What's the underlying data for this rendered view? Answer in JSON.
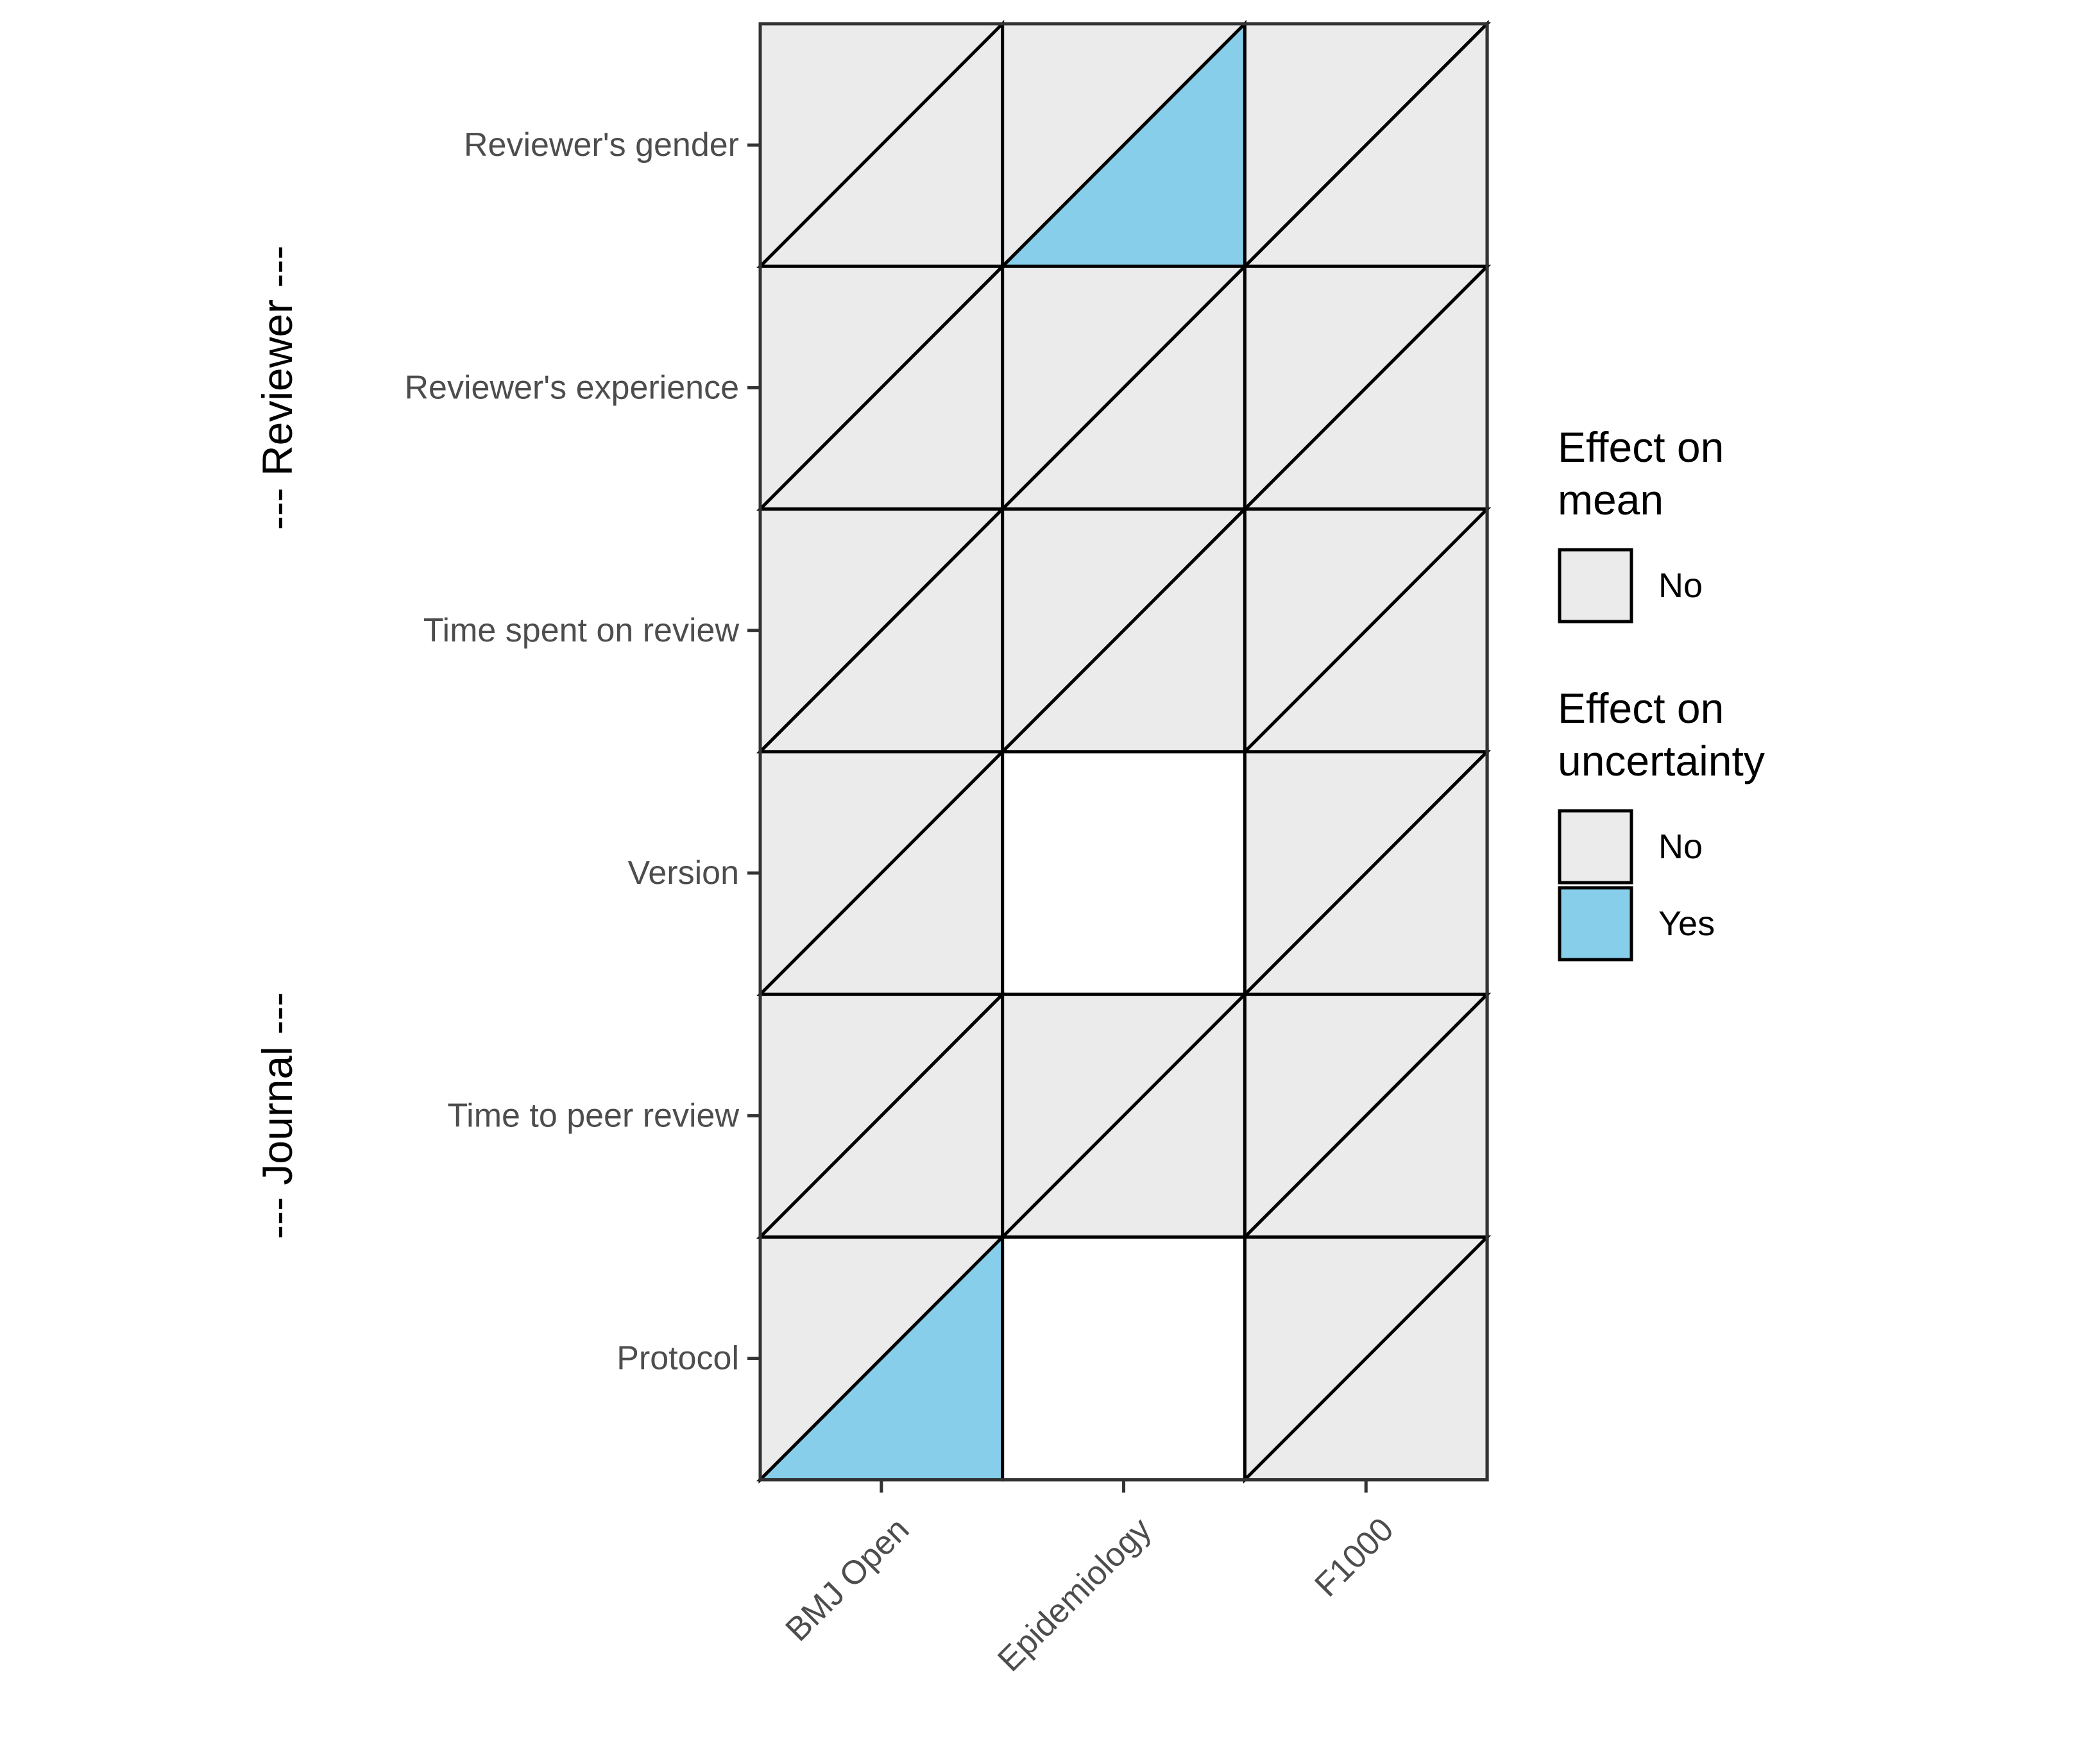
{
  "chart_data": {
    "type": "heatmap",
    "title": "",
    "xlabel": "",
    "ylabel": "",
    "x_categories": [
      "BMJ Open",
      "Epidemiology",
      "F1000"
    ],
    "y_categories": [
      "Reviewer's gender",
      "Reviewer's experience",
      "Time spent on review",
      "Version",
      "Time to peer review",
      "Protocol"
    ],
    "row_groups": [
      {
        "label": "--- Reviewer ---",
        "rows": [
          "Reviewer's gender",
          "Reviewer's experience",
          "Time spent on review"
        ]
      },
      {
        "label": "--- Journal ---",
        "rows": [
          "Version",
          "Time to peer review",
          "Protocol"
        ]
      }
    ],
    "cells": [
      {
        "row": "Reviewer's gender",
        "col": "BMJ Open",
        "mean": "No",
        "uncertainty": "No"
      },
      {
        "row": "Reviewer's gender",
        "col": "Epidemiology",
        "mean": "No",
        "uncertainty": "Yes"
      },
      {
        "row": "Reviewer's gender",
        "col": "F1000",
        "mean": "No",
        "uncertainty": "No"
      },
      {
        "row": "Reviewer's experience",
        "col": "BMJ Open",
        "mean": "No",
        "uncertainty": "No"
      },
      {
        "row": "Reviewer's experience",
        "col": "Epidemiology",
        "mean": "No",
        "uncertainty": "No"
      },
      {
        "row": "Reviewer's experience",
        "col": "F1000",
        "mean": "No",
        "uncertainty": "No"
      },
      {
        "row": "Time spent on review",
        "col": "BMJ Open",
        "mean": "No",
        "uncertainty": "No"
      },
      {
        "row": "Time spent on review",
        "col": "Epidemiology",
        "mean": "No",
        "uncertainty": "No"
      },
      {
        "row": "Time spent on review",
        "col": "F1000",
        "mean": "No",
        "uncertainty": "No"
      },
      {
        "row": "Version",
        "col": "BMJ Open",
        "mean": "No",
        "uncertainty": "No"
      },
      {
        "row": "Version",
        "col": "Epidemiology",
        "mean": null,
        "uncertainty": null
      },
      {
        "row": "Version",
        "col": "F1000",
        "mean": "No",
        "uncertainty": "No"
      },
      {
        "row": "Time to peer review",
        "col": "BMJ Open",
        "mean": "No",
        "uncertainty": "No"
      },
      {
        "row": "Time to peer review",
        "col": "Epidemiology",
        "mean": "No",
        "uncertainty": "No"
      },
      {
        "row": "Time to peer review",
        "col": "F1000",
        "mean": "No",
        "uncertainty": "No"
      },
      {
        "row": "Protocol",
        "col": "BMJ Open",
        "mean": "No",
        "uncertainty": "Yes"
      },
      {
        "row": "Protocol",
        "col": "Epidemiology",
        "mean": null,
        "uncertainty": null
      },
      {
        "row": "Protocol",
        "col": "F1000",
        "mean": "No",
        "uncertainty": "No"
      }
    ],
    "legend": {
      "placement": "right",
      "groups": [
        {
          "title_lines": [
            "Effect on",
            "mean"
          ],
          "entries": [
            {
              "label": "No",
              "color": "#ebebeb"
            }
          ]
        },
        {
          "title_lines": [
            "Effect on",
            "uncertainty"
          ],
          "entries": [
            {
              "label": "No",
              "color": "#ebebeb"
            },
            {
              "label": "Yes",
              "color": "#87ceeb"
            }
          ]
        }
      ]
    },
    "colors": {
      "No": "#ebebeb",
      "Yes": "#87ceeb",
      "missing": "#ffffff",
      "border": "#000000",
      "panel_border": "#333333"
    }
  }
}
